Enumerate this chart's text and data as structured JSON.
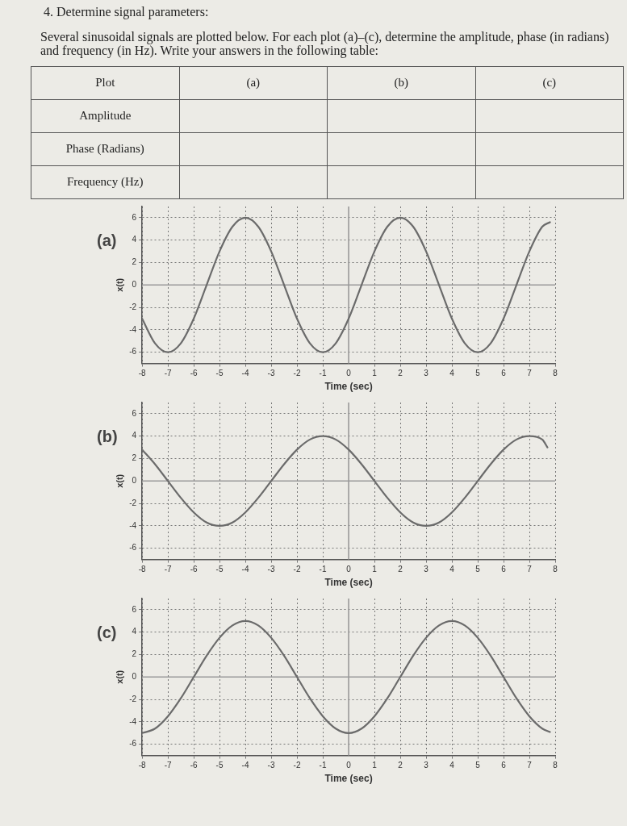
{
  "chart_data": [
    {
      "type": "other",
      "title": "4. Determine signal parameters:",
      "subtitle": "Several sinusoidal signals are plotted below. For each plot (a)–(c), determine the amplitude, phase (in radians) and frequency (in Hz). Write your answers in the following table:",
      "annotations": [
        "Plot",
        "(a)",
        "(b)",
        "(c)",
        "Amplitude",
        "Phase (Radians)",
        "Frequency (Hz)"
      ]
    },
    {
      "type": "line",
      "title": "(a)",
      "xlabel": "Time (sec)",
      "ylabel": "x(t)",
      "xlim": [
        -8,
        8
      ],
      "ylim": [
        -7,
        7
      ],
      "xticks": [
        -8,
        -7,
        -6,
        -5,
        -4,
        -3,
        -2,
        -1,
        0,
        1,
        2,
        3,
        4,
        5,
        6,
        7,
        8
      ],
      "yticks": [
        -6,
        -4,
        -2,
        0,
        2,
        4,
        6
      ],
      "grid": true,
      "marker": "none",
      "line_style": "solid",
      "series": [
        {
          "color": "#6b6b6b",
          "x": [
            -8,
            -7.5,
            -7,
            -6.5,
            -6,
            -5.5,
            -5,
            -4.5,
            -4,
            -3.5,
            -3,
            -2.5,
            -2,
            -1.5,
            -1,
            -0.5,
            0,
            0.5,
            1,
            1.5,
            2,
            2.5,
            3,
            3.5,
            4,
            4.5,
            5,
            5.5,
            6,
            6.5,
            7,
            7.5,
            7.8
          ],
          "values": [
            -3,
            -5.2,
            -6,
            -5.2,
            -3,
            0,
            3,
            5.2,
            6,
            5.2,
            3,
            0,
            -3,
            -5.2,
            -6,
            -5.2,
            -3,
            0,
            3,
            5.2,
            6,
            5.2,
            3,
            0,
            -3,
            -5.2,
            -6,
            -5.2,
            -3,
            0,
            3,
            5.2,
            5.6
          ]
        }
      ]
    },
    {
      "type": "line",
      "title": "(b)",
      "xlabel": "Time (sec)",
      "ylabel": "x(t)",
      "xlim": [
        -8,
        8
      ],
      "ylim": [
        -7,
        7
      ],
      "xticks": [
        -8,
        -7,
        -6,
        -5,
        -4,
        -3,
        -2,
        -1,
        0,
        1,
        2,
        3,
        4,
        5,
        6,
        7,
        8
      ],
      "yticks": [
        -6,
        -4,
        -2,
        0,
        2,
        4,
        6
      ],
      "grid": true,
      "marker": "none",
      "line_style": "solid",
      "series": [
        {
          "color": "#6b6b6b",
          "x": [
            -8,
            -7.5,
            -7,
            -6.5,
            -6,
            -5.5,
            -5,
            -4.5,
            -4,
            -3.5,
            -3,
            -2.5,
            -2,
            -1.5,
            -1,
            -0.5,
            0,
            0.5,
            1,
            1.5,
            2,
            2.5,
            3,
            3.5,
            4,
            4.5,
            5,
            5.5,
            6,
            6.5,
            7,
            7.5,
            7.7
          ],
          "values": [
            2.8,
            1.5,
            0,
            -1.5,
            -2.8,
            -3.7,
            -4,
            -3.7,
            -2.8,
            -1.5,
            0,
            1.5,
            2.8,
            3.7,
            4,
            3.7,
            2.8,
            1.5,
            0,
            -1.5,
            -2.8,
            -3.7,
            -4,
            -3.7,
            -2.8,
            -1.5,
            0,
            1.5,
            2.8,
            3.7,
            4,
            3.7,
            3
          ]
        }
      ]
    },
    {
      "type": "line",
      "title": "(c)",
      "xlabel": "Time (sec)",
      "ylabel": "x(t)",
      "xlim": [
        -8,
        8
      ],
      "ylim": [
        -7,
        7
      ],
      "xticks": [
        -8,
        -7,
        -6,
        -5,
        -4,
        -3,
        -2,
        -1,
        0,
        1,
        2,
        3,
        4,
        5,
        6,
        7,
        8
      ],
      "yticks": [
        -6,
        -4,
        -2,
        0,
        2,
        4,
        6
      ],
      "grid": true,
      "marker": "none",
      "line_style": "solid",
      "series": [
        {
          "color": "#6b6b6b",
          "x": [
            -8,
            -7.5,
            -7,
            -6.5,
            -6,
            -5.5,
            -5,
            -4.5,
            -4,
            -3.5,
            -3,
            -2.5,
            -2,
            -1.5,
            -1,
            -0.5,
            0,
            0.5,
            1,
            1.5,
            2,
            2.5,
            3,
            3.5,
            4,
            4.5,
            5,
            5.5,
            6,
            6.5,
            7,
            7.5,
            7.8
          ],
          "values": [
            -5,
            -4.6,
            -3.5,
            -1.9,
            0,
            1.9,
            3.5,
            4.6,
            5,
            4.6,
            3.5,
            1.9,
            0,
            -1.9,
            -3.5,
            -4.6,
            -5,
            -4.6,
            -3.5,
            -1.9,
            0,
            1.9,
            3.5,
            4.6,
            5,
            4.6,
            3.5,
            1.9,
            0,
            -1.9,
            -3.5,
            -4.6,
            -4.9
          ]
        }
      ]
    }
  ]
}
